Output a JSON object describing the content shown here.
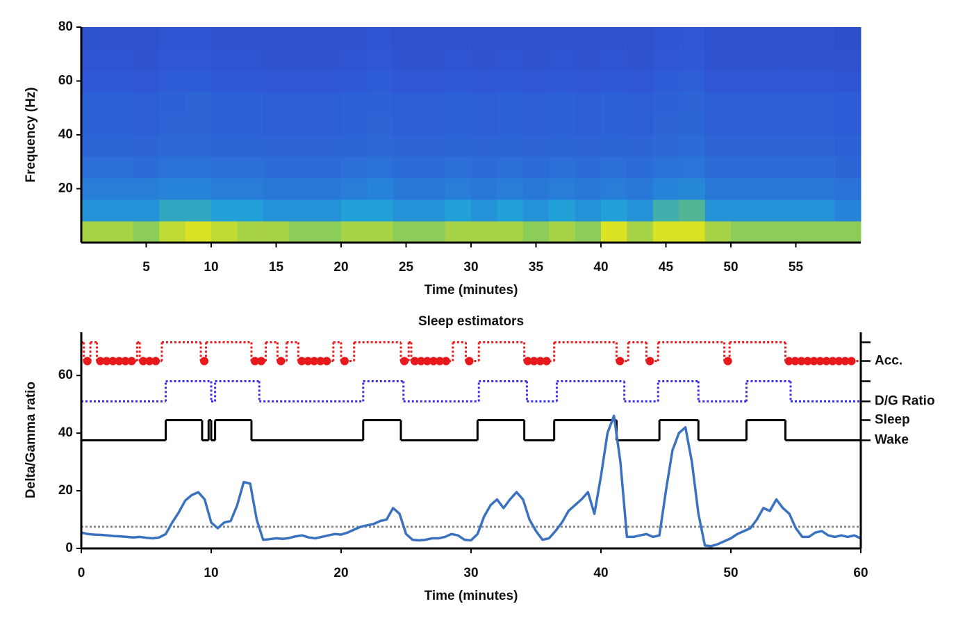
{
  "chart_data": [
    {
      "type": "heatmap",
      "xlabel": "Time (minutes)",
      "ylabel": "Frequency (Hz)",
      "xlim": [
        0,
        60
      ],
      "xticks": [
        5,
        10,
        15,
        20,
        25,
        30,
        35,
        40,
        45,
        50,
        55
      ],
      "ylim": [
        0,
        80
      ],
      "yticks": [
        20,
        40,
        60,
        80
      ],
      "xbins": [
        0,
        2,
        4,
        6,
        8,
        10,
        12,
        14,
        16,
        18,
        20,
        22,
        24,
        26,
        28,
        30,
        32,
        34,
        36,
        38,
        40,
        42,
        44,
        46,
        48,
        50,
        52,
        54,
        56,
        58,
        60
      ],
      "ybins": [
        0,
        8,
        16,
        24,
        32,
        40,
        48,
        56,
        64,
        72,
        80
      ],
      "zlim": [
        0,
        1
      ],
      "colormap": [
        "#2b2c9c",
        "#2f58d6",
        "#22a0d8",
        "#72c46a",
        "#f6ea12"
      ],
      "z": [
        [
          0.85,
          0.85,
          0.8,
          0.9,
          0.95,
          0.9,
          0.85,
          0.85,
          0.8,
          0.8,
          0.85,
          0.85,
          0.8,
          0.8,
          0.85,
          0.85,
          0.85,
          0.8,
          0.85,
          0.8,
          0.95,
          0.85,
          0.95,
          0.95,
          0.85,
          0.8,
          0.8,
          0.8,
          0.8,
          0.8
        ],
        [
          0.45,
          0.45,
          0.45,
          0.55,
          0.55,
          0.5,
          0.5,
          0.45,
          0.45,
          0.45,
          0.5,
          0.5,
          0.45,
          0.45,
          0.5,
          0.45,
          0.5,
          0.45,
          0.5,
          0.45,
          0.5,
          0.45,
          0.6,
          0.65,
          0.45,
          0.45,
          0.45,
          0.45,
          0.45,
          0.4
        ],
        [
          0.38,
          0.38,
          0.38,
          0.4,
          0.4,
          0.38,
          0.38,
          0.36,
          0.36,
          0.36,
          0.38,
          0.4,
          0.36,
          0.36,
          0.38,
          0.36,
          0.38,
          0.36,
          0.38,
          0.36,
          0.38,
          0.36,
          0.4,
          0.42,
          0.36,
          0.36,
          0.36,
          0.36,
          0.36,
          0.34
        ],
        [
          0.33,
          0.33,
          0.32,
          0.34,
          0.34,
          0.33,
          0.33,
          0.32,
          0.32,
          0.32,
          0.33,
          0.34,
          0.32,
          0.32,
          0.33,
          0.32,
          0.33,
          0.32,
          0.33,
          0.32,
          0.33,
          0.32,
          0.34,
          0.35,
          0.32,
          0.32,
          0.32,
          0.32,
          0.32,
          0.3
        ],
        [
          0.3,
          0.3,
          0.29,
          0.31,
          0.31,
          0.3,
          0.3,
          0.29,
          0.29,
          0.29,
          0.3,
          0.31,
          0.29,
          0.29,
          0.3,
          0.29,
          0.3,
          0.29,
          0.3,
          0.29,
          0.3,
          0.29,
          0.31,
          0.32,
          0.29,
          0.29,
          0.29,
          0.29,
          0.29,
          0.28
        ],
        [
          0.28,
          0.28,
          0.27,
          0.29,
          0.29,
          0.28,
          0.28,
          0.27,
          0.27,
          0.27,
          0.28,
          0.29,
          0.27,
          0.27,
          0.28,
          0.27,
          0.28,
          0.27,
          0.28,
          0.27,
          0.28,
          0.27,
          0.29,
          0.3,
          0.27,
          0.27,
          0.27,
          0.27,
          0.27,
          0.26
        ],
        [
          0.28,
          0.28,
          0.27,
          0.28,
          0.29,
          0.28,
          0.28,
          0.27,
          0.27,
          0.27,
          0.28,
          0.28,
          0.27,
          0.27,
          0.28,
          0.27,
          0.28,
          0.27,
          0.28,
          0.27,
          0.28,
          0.27,
          0.28,
          0.29,
          0.27,
          0.27,
          0.27,
          0.27,
          0.27,
          0.26
        ],
        [
          0.25,
          0.25,
          0.24,
          0.26,
          0.26,
          0.25,
          0.25,
          0.24,
          0.24,
          0.24,
          0.25,
          0.26,
          0.24,
          0.24,
          0.25,
          0.24,
          0.25,
          0.24,
          0.25,
          0.24,
          0.25,
          0.24,
          0.26,
          0.27,
          0.24,
          0.24,
          0.24,
          0.24,
          0.24,
          0.23
        ],
        [
          0.23,
          0.23,
          0.22,
          0.24,
          0.24,
          0.23,
          0.23,
          0.22,
          0.22,
          0.22,
          0.23,
          0.24,
          0.22,
          0.22,
          0.23,
          0.22,
          0.23,
          0.22,
          0.23,
          0.22,
          0.23,
          0.22,
          0.24,
          0.25,
          0.22,
          0.22,
          0.22,
          0.22,
          0.22,
          0.21
        ],
        [
          0.22,
          0.22,
          0.21,
          0.23,
          0.23,
          0.22,
          0.22,
          0.21,
          0.21,
          0.21,
          0.22,
          0.23,
          0.21,
          0.21,
          0.22,
          0.21,
          0.22,
          0.21,
          0.22,
          0.21,
          0.22,
          0.21,
          0.23,
          0.24,
          0.21,
          0.21,
          0.21,
          0.21,
          0.21,
          0.2
        ]
      ]
    },
    {
      "type": "line",
      "title": "Sleep estimators",
      "xlabel": "Time (minutes)",
      "ylabel": "Delta/Gamma ratio",
      "xlim": [
        0,
        60
      ],
      "xticks": [
        0,
        10,
        20,
        30,
        40,
        50,
        60
      ],
      "ylim": [
        0,
        75
      ],
      "yticks": [
        0,
        20,
        40,
        60
      ],
      "y2lim": [
        0,
        75
      ],
      "y2ticks": [
        {
          "value": 71.5,
          "label": null
        },
        {
          "value": 65,
          "label": "Acc."
        },
        {
          "value": 58,
          "label": null
        },
        {
          "value": 51,
          "label": "D/G Ratio"
        },
        {
          "value": 44.5,
          "label": "Sleep"
        },
        {
          "value": 37.5,
          "label": "Wake"
        }
      ],
      "hline": {
        "value": 7.5,
        "color": "#8c8c8c",
        "linestyle": "dotted"
      },
      "series": [
        {
          "color": "#e8191c",
          "linestyle": "dotted",
          "step": "post",
          "marker": "circle",
          "x": [
            0,
            0.2,
            0.7,
            1.2,
            4.3,
            4.5,
            6.2,
            9.2,
            9.6,
            13.1,
            14.2,
            15.1,
            15.8,
            16.7,
            19.4,
            20.0,
            21.0,
            24.6,
            25.2,
            25.4,
            28.6,
            29.6,
            30.6,
            34.1,
            36.4,
            41.2,
            42.1,
            43.5,
            44.4,
            49.5,
            49.9,
            54.2
          ],
          "values": [
            71.5,
            65,
            71.5,
            65,
            71.5,
            65,
            71.5,
            65,
            71.5,
            65,
            71.5,
            65,
            71.5,
            65,
            71.5,
            65,
            71.5,
            65,
            71.5,
            65,
            71.5,
            65,
            71.5,
            65,
            71.5,
            65,
            71.5,
            65,
            71.5,
            65,
            71.5,
            65
          ]
        },
        {
          "color": "#3b2fe6",
          "linestyle": "dotted",
          "step": "post",
          "x": [
            0,
            6.5,
            10.0,
            10.3,
            13.7,
            21.7,
            24.8,
            30.6,
            34.3,
            36.6,
            41.8,
            44.4,
            47.5,
            51.2,
            54.6
          ],
          "values": [
            51,
            58,
            51,
            58,
            51,
            58,
            51,
            58,
            51,
            58,
            51,
            58,
            51,
            58,
            51
          ]
        },
        {
          "color": "#000000",
          "linestyle": "solid",
          "step": "post",
          "x": [
            0,
            6.5,
            9.3,
            9.8,
            10.0,
            10.3,
            13.1,
            21.7,
            24.6,
            30.5,
            34.1,
            36.4,
            41.2,
            44.5,
            47.5,
            51.2,
            54.2
          ],
          "values": [
            37.5,
            44.5,
            37.5,
            44.5,
            37.5,
            44.5,
            37.5,
            44.5,
            37.5,
            44.5,
            37.5,
            44.5,
            37.5,
            44.5,
            37.5,
            44.5,
            37.5
          ]
        },
        {
          "color": "#3a72bf",
          "linestyle": "solid",
          "x": [
            0,
            0.5,
            1,
            1.5,
            2,
            2.5,
            3,
            3.5,
            4,
            4.5,
            5,
            5.5,
            6,
            6.5,
            7,
            7.5,
            8,
            8.5,
            9,
            9.5,
            10,
            10.5,
            11,
            11.5,
            12,
            12.5,
            13,
            13.5,
            14,
            14.5,
            15,
            15.5,
            16,
            16.5,
            17,
            17.5,
            18,
            18.5,
            19,
            19.5,
            20,
            20.5,
            21,
            21.5,
            22,
            22.5,
            23,
            23.5,
            24,
            24.5,
            25,
            25.5,
            26,
            26.5,
            27,
            27.5,
            28,
            28.5,
            29,
            29.5,
            30,
            30.5,
            31,
            31.5,
            32,
            32.5,
            33,
            33.5,
            34,
            34.5,
            35,
            35.5,
            36,
            36.5,
            37,
            37.5,
            38,
            38.5,
            39,
            39.5,
            40,
            40.5,
            41,
            41.5,
            42,
            42.5,
            43,
            43.5,
            44,
            44.5,
            45,
            45.5,
            46,
            46.5,
            47,
            47.5,
            48,
            48.5,
            49,
            49.5,
            50,
            50.5,
            51,
            51.5,
            52,
            52.5,
            53,
            53.5,
            54,
            54.5,
            55,
            55.5,
            56,
            56.5,
            57,
            57.5,
            58,
            58.5,
            59,
            59.5,
            60
          ],
          "values": [
            5.5,
            5,
            4.8,
            4.7,
            4.5,
            4.3,
            4.2,
            4,
            3.8,
            4,
            3.7,
            3.5,
            3.8,
            5,
            9,
            12.5,
            16.6,
            18.5,
            19.5,
            17,
            9,
            7,
            9,
            9.5,
            15,
            23,
            22.5,
            10,
            3,
            3.2,
            3.5,
            3.3,
            3.6,
            4.2,
            4.5,
            3.8,
            3.5,
            4,
            4.5,
            5,
            4.8,
            5.5,
            6.5,
            7.5,
            8,
            8.5,
            9.5,
            10,
            14,
            12,
            5,
            3,
            2.8,
            3,
            3.5,
            3.5,
            4,
            5,
            4.5,
            3,
            2.8,
            5,
            11,
            15,
            17,
            14,
            17,
            19.5,
            17,
            10,
            6,
            3,
            3.5,
            6,
            9,
            13,
            15,
            17,
            19.5,
            12,
            25,
            40,
            46,
            30,
            4,
            4,
            4.5,
            5,
            4,
            4.5,
            20,
            34,
            40,
            42,
            30,
            12,
            1,
            0.8,
            1.5,
            2.5,
            3.5,
            5,
            6,
            7,
            10,
            14,
            13,
            17,
            14,
            12,
            7,
            4,
            4,
            5.5,
            6,
            4.5,
            4,
            4.5,
            4,
            4.5,
            3.5
          ]
        }
      ]
    }
  ]
}
